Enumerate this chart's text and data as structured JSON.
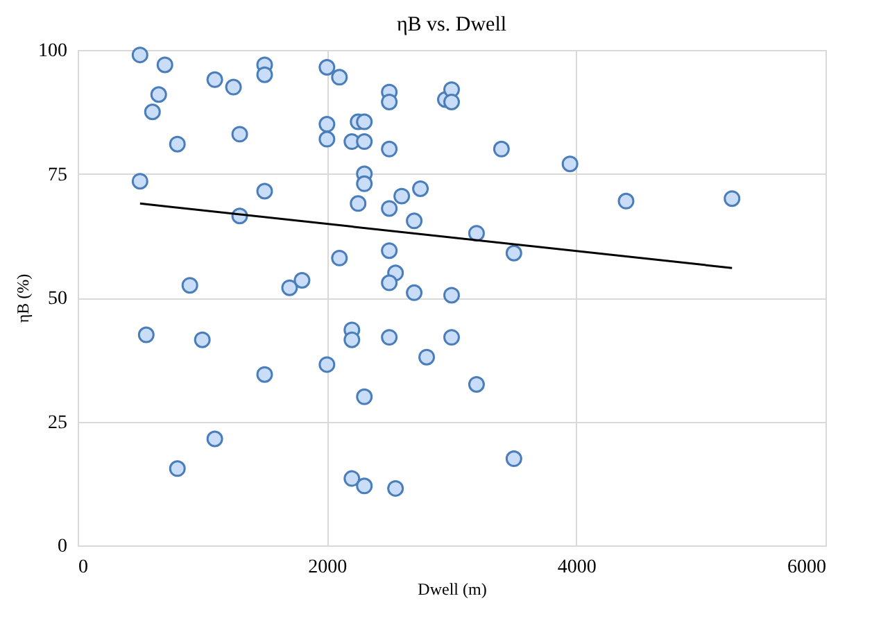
{
  "chart_data": {
    "type": "scatter",
    "title": "ηB vs. Dwell",
    "xlabel": "Dwell (m)",
    "ylabel": "ηB (%)",
    "xlim": [
      0,
      6000
    ],
    "xticks": [
      0,
      2000,
      4000,
      6000
    ],
    "ylim": [
      0,
      100
    ],
    "yticks": [
      0,
      25,
      50,
      75,
      100
    ],
    "grid": true,
    "marker": "circle",
    "series": [
      {
        "color": "#4a7ebb",
        "x": [
          500,
          700,
          650,
          600,
          800,
          500,
          550,
          900,
          1000,
          800,
          1100,
          1100,
          1250,
          1300,
          1300,
          1500,
          1500,
          1500,
          1500,
          1700,
          1800,
          2000,
          2100,
          2000,
          2000,
          2100,
          2000,
          2200,
          2200,
          2200,
          2250,
          2300,
          2300,
          2250,
          2300,
          2300,
          2300,
          2200,
          2300,
          2500,
          2500,
          2500,
          2500,
          2500,
          2550,
          2500,
          2500,
          2550,
          2600,
          2700,
          2700,
          2750,
          2800,
          2950,
          3000,
          3000,
          3000,
          3000,
          3200,
          3200,
          3400,
          3500,
          3500,
          3950,
          4400,
          5250
        ],
        "values": [
          99,
          97,
          91,
          87.5,
          81,
          73.5,
          42.5,
          52.5,
          41.5,
          15.5,
          21.5,
          94,
          92.5,
          83,
          66.5,
          97,
          95,
          71.5,
          34.5,
          52,
          53.5,
          96.5,
          94.5,
          85,
          82,
          58,
          36.5,
          43.5,
          41.5,
          81.5,
          85.5,
          85.5,
          81.5,
          69,
          75,
          73,
          30,
          13.5,
          12,
          91.5,
          89.5,
          80,
          68,
          59.5,
          55,
          53,
          42,
          11.5,
          70.5,
          65.5,
          51,
          72,
          38,
          90,
          92,
          89.5,
          50.5,
          42,
          63,
          32.5,
          80,
          59,
          17.5,
          77,
          69.5,
          70
        ]
      },
      {
        "type": "line",
        "color": "#000000",
        "x": [
          500,
          5250
        ],
        "values": [
          69,
          56
        ],
        "marker": "none"
      }
    ]
  }
}
